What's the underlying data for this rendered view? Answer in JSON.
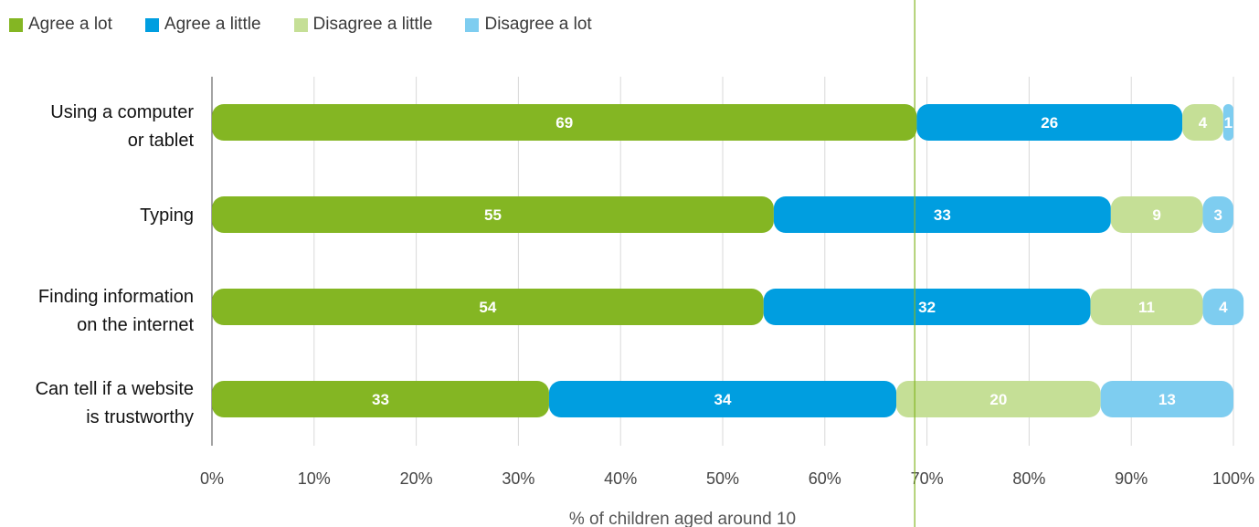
{
  "chart_data": {
    "type": "bar",
    "orientation": "horizontal",
    "stacked": true,
    "categories": [
      [
        "Using a computer",
        "or tablet"
      ],
      [
        "Typing"
      ],
      [
        "Finding information",
        "on the internet"
      ],
      [
        "Can tell if a website",
        "is trustworthy"
      ]
    ],
    "series": [
      {
        "name": "Agree a lot",
        "color": "#84b623",
        "values": [
          69,
          55,
          54,
          33
        ]
      },
      {
        "name": "Agree a little",
        "color": "#009ee0",
        "values": [
          26,
          33,
          32,
          34
        ]
      },
      {
        "name": "Disagree a little",
        "color": "#c5df96",
        "values": [
          4,
          9,
          11,
          20
        ]
      },
      {
        "name": "Disagree a lot",
        "color": "#7ecdf0",
        "values": [
          1,
          3,
          4,
          13
        ]
      }
    ],
    "xlabel": "% of children aged around 10",
    "xlim": [
      0,
      100
    ],
    "xticks": [
      0,
      10,
      20,
      30,
      40,
      50,
      60,
      70,
      80,
      90,
      100
    ],
    "xtick_labels": [
      "0%",
      "10%",
      "20%",
      "30%",
      "40%",
      "50%",
      "60%",
      "70%",
      "80%",
      "90%",
      "100%"
    ],
    "reference_line": {
      "x": 68.8,
      "color": "#84b623"
    },
    "grid": true,
    "legend_position": "top-left",
    "gridline_color": "#d9d9d9",
    "axis_color": "#666666"
  }
}
